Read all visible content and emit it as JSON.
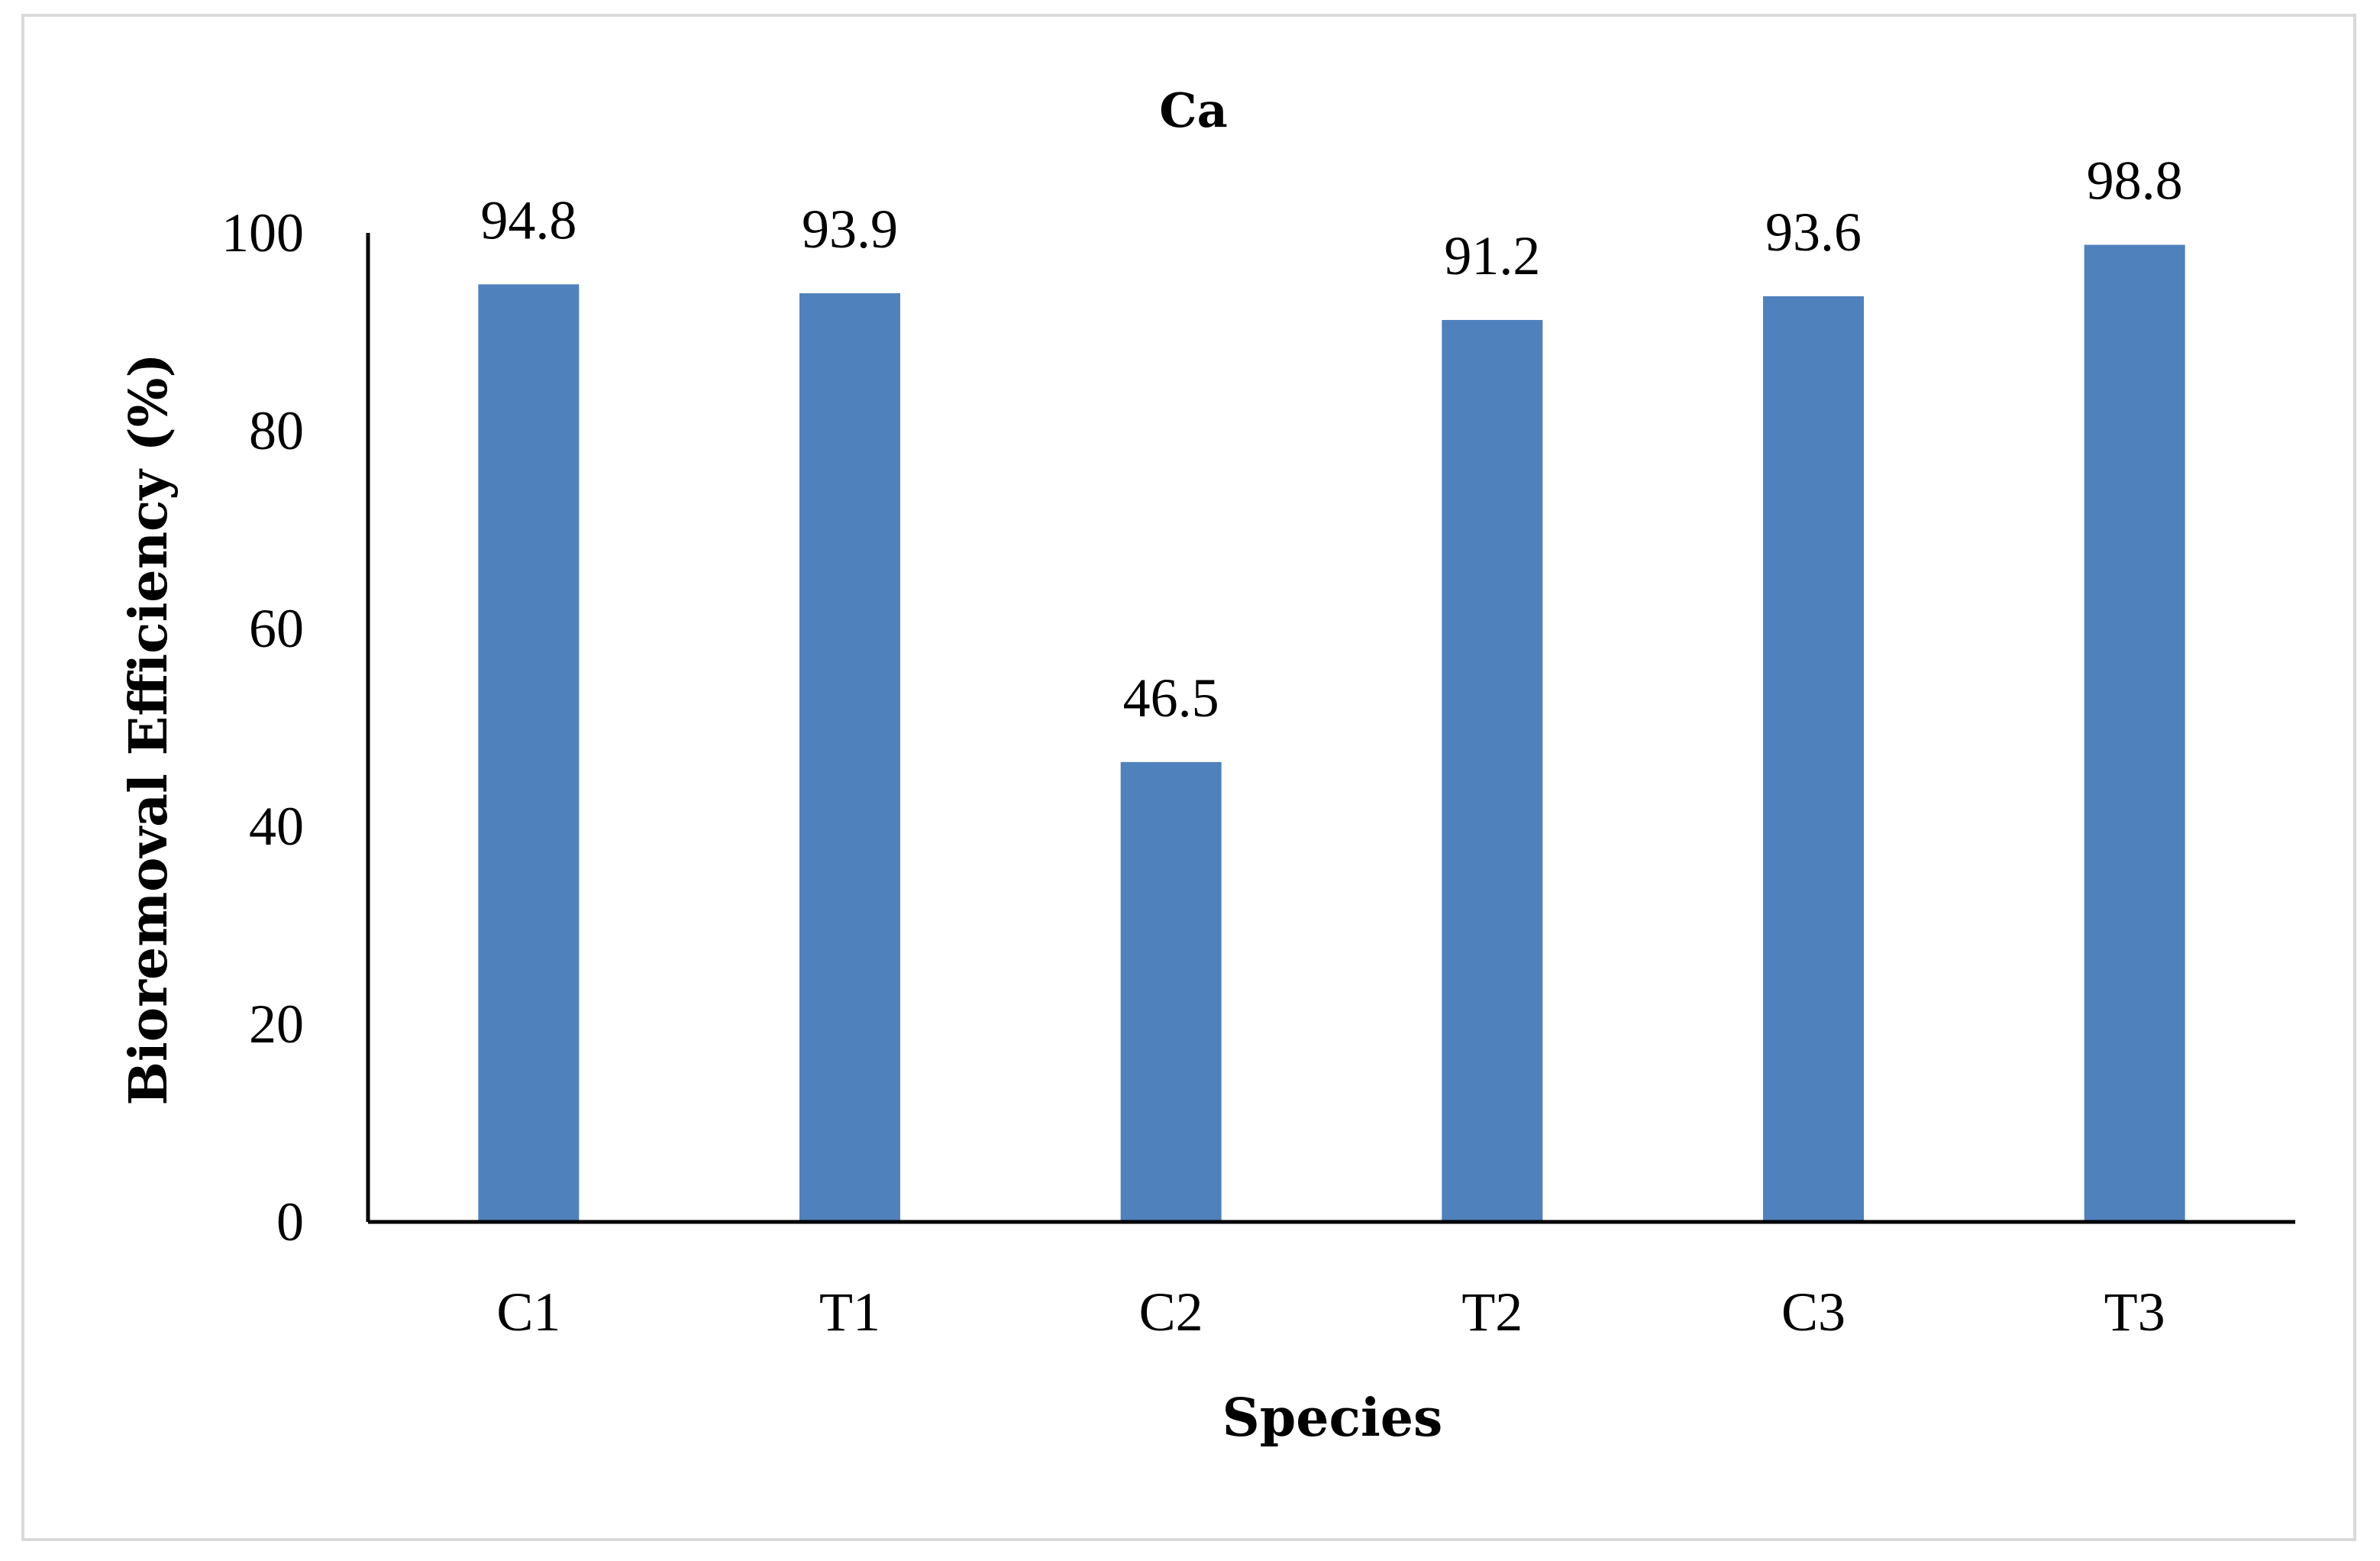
{
  "chart_data": {
    "type": "bar",
    "title": "Ca",
    "xlabel": "Species",
    "ylabel": "Bioremoval Efficiency (%)",
    "categories": [
      "C1",
      "T1",
      "C2",
      "T2",
      "C3",
      "T3"
    ],
    "values": [
      94.8,
      93.9,
      46.5,
      91.2,
      93.6,
      98.8
    ],
    "data_labels": [
      "94.8",
      "93.9",
      "46.5",
      "91.2",
      "93.6",
      "98.8"
    ],
    "ylim": [
      0,
      100
    ],
    "yticks": [
      0,
      20,
      40,
      60,
      80,
      100
    ],
    "ytick_labels": [
      "0",
      "20",
      "40",
      "60",
      "80",
      "100"
    ],
    "grid": false,
    "legend": "none",
    "bar_color": "#4f81bd"
  }
}
